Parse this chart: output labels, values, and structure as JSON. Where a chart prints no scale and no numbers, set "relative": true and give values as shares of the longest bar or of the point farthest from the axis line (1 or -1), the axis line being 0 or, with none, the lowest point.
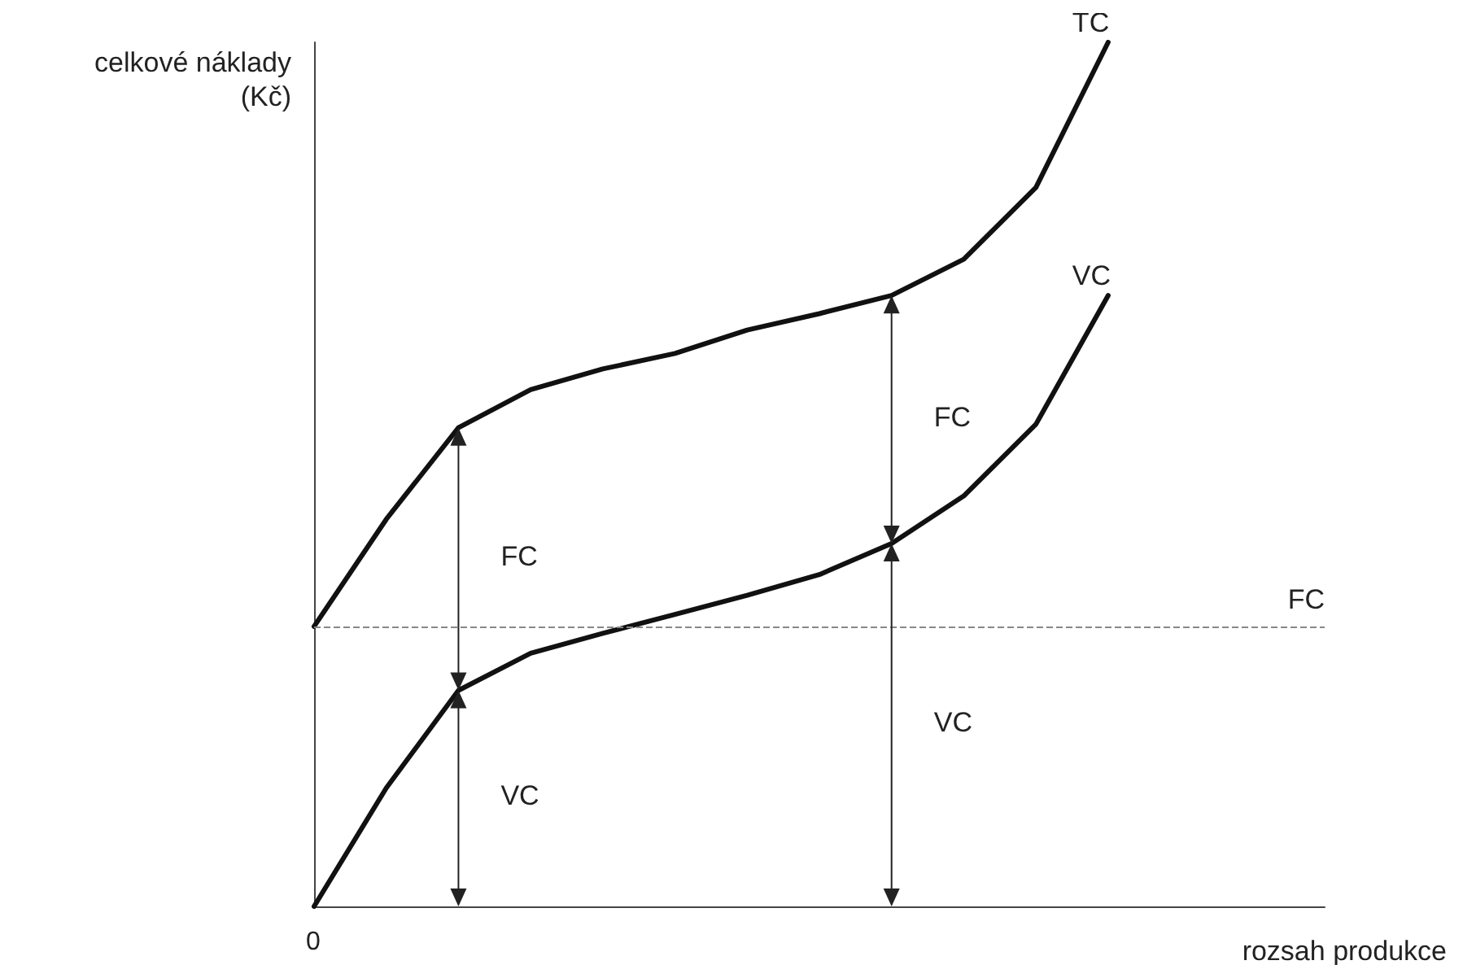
{
  "chart_data": {
    "type": "line",
    "relative": true,
    "xlabel": "rozsah produkce",
    "ylabel": "celkové náklady\n(Kč)",
    "categories": [
      null,
      null,
      null,
      null,
      null,
      null,
      null,
      null,
      null,
      null,
      null,
      null,
      null,
      null,
      null
    ],
    "series": [
      {
        "name": "TC",
        "color": "#111111",
        "values": [
          0.324,
          0.448,
          0.554,
          0.598,
          0.622,
          0.64,
          0.667,
          0.686,
          0.707,
          0.749,
          0.832,
          1.0,
          null,
          null,
          null
        ]
      },
      {
        "name": "VC",
        "color": "#111111",
        "values": [
          0,
          0.137,
          0.25,
          0.293,
          0.316,
          0.338,
          0.36,
          0.384,
          0.42,
          0.475,
          0.558,
          0.707,
          null,
          null,
          null
        ]
      }
    ],
    "ref_lines": [
      {
        "axis": "y",
        "value": 0.324,
        "label": "FC",
        "color": "#888888",
        "line_style": "dashed"
      }
    ],
    "annotations": [
      "FC",
      "VC",
      "FC",
      "VC",
      "0"
    ],
    "grid": false,
    "legend": false,
    "marker": "none",
    "line_style": "solid"
  }
}
